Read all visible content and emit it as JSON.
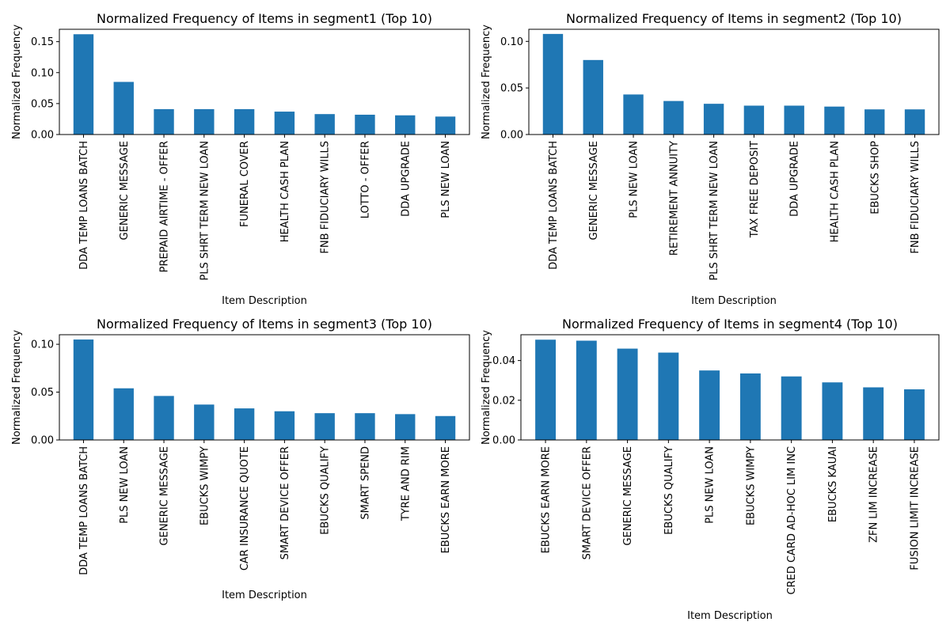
{
  "chart_data": [
    {
      "type": "bar",
      "title": "Normalized Frequency of Items in segment1 (Top 10)",
      "xlabel": "Item Description",
      "ylabel": "Normalized Frequency",
      "ylim": [
        0,
        0.17
      ],
      "yticks": [
        0.0,
        0.05,
        0.1,
        0.15
      ],
      "ytick_decimals": 2,
      "categories": [
        "DDA TEMP LOANS BATCH",
        "GENERIC MESSAGE",
        "PREPAID AIRTIME - OFFER",
        "PLS SHRT TERM NEW LOAN",
        "FUNERAL COVER",
        "HEALTH CASH PLAN",
        "FNB FIDUCIARY WILLS",
        "LOTTO - OFFER",
        "DDA UPGRADE",
        "PLS NEW LOAN"
      ],
      "values": [
        0.162,
        0.085,
        0.041,
        0.041,
        0.041,
        0.037,
        0.033,
        0.032,
        0.031,
        0.029
      ],
      "bar_color": "#1f77b4",
      "grid": false
    },
    {
      "type": "bar",
      "title": "Normalized Frequency of Items in segment2 (Top 10)",
      "xlabel": "Item Description",
      "ylabel": "Normalized Frequency",
      "ylim": [
        0,
        0.113
      ],
      "yticks": [
        0.0,
        0.05,
        0.1
      ],
      "ytick_decimals": 2,
      "categories": [
        "DDA TEMP LOANS BATCH",
        "GENERIC MESSAGE",
        "PLS NEW LOAN",
        "RETIREMENT ANNUITY",
        "PLS SHRT TERM NEW LOAN",
        "TAX FREE DEPOSIT",
        "DDA UPGRADE",
        "HEALTH CASH PLAN",
        "EBUCKS  SHOP",
        "FNB FIDUCIARY WILLS"
      ],
      "values": [
        0.108,
        0.08,
        0.043,
        0.036,
        0.033,
        0.031,
        0.031,
        0.03,
        0.027,
        0.027
      ],
      "bar_color": "#1f77b4",
      "grid": false
    },
    {
      "type": "bar",
      "title": "Normalized Frequency of Items in segment3 (Top 10)",
      "xlabel": "Item Description",
      "ylabel": "Normalized Frequency",
      "ylim": [
        0,
        0.11
      ],
      "yticks": [
        0.0,
        0.05,
        0.1
      ],
      "ytick_decimals": 2,
      "categories": [
        "DDA TEMP LOANS BATCH",
        "PLS NEW LOAN",
        "GENERIC MESSAGE",
        "EBUCKS WIMPY",
        "CAR INSURANCE QUOTE",
        "SMART DEVICE OFFER",
        "EBUCKS  QUALIFY",
        "SMART SPEND",
        "TYRE AND RIM",
        "EBUCKS  EARN MORE"
      ],
      "values": [
        0.105,
        0.054,
        0.046,
        0.037,
        0.033,
        0.03,
        0.028,
        0.028,
        0.027,
        0.025
      ],
      "bar_color": "#1f77b4",
      "grid": false
    },
    {
      "type": "bar",
      "title": "Normalized Frequency of Items in segment4 (Top 10)",
      "xlabel": "Item Description",
      "ylabel": "Normalized Frequency",
      "ylim": [
        0,
        0.053
      ],
      "yticks": [
        0.0,
        0.02,
        0.04
      ],
      "ytick_decimals": 2,
      "categories": [
        "EBUCKS  EARN MORE",
        "SMART DEVICE OFFER",
        "GENERIC MESSAGE",
        "EBUCKS  QUALIFY",
        "PLS NEW LOAN",
        "EBUCKS WIMPY",
        "CRED CARD AD-HOC LIM INC",
        "EBUCKS KAUAI",
        "ZFN LIM INCREASE",
        "FUSION LIMIT INCREASE"
      ],
      "values": [
        0.0505,
        0.05,
        0.046,
        0.044,
        0.035,
        0.0335,
        0.032,
        0.029,
        0.0265,
        0.0255
      ],
      "bar_color": "#1f77b4",
      "grid": false
    }
  ]
}
